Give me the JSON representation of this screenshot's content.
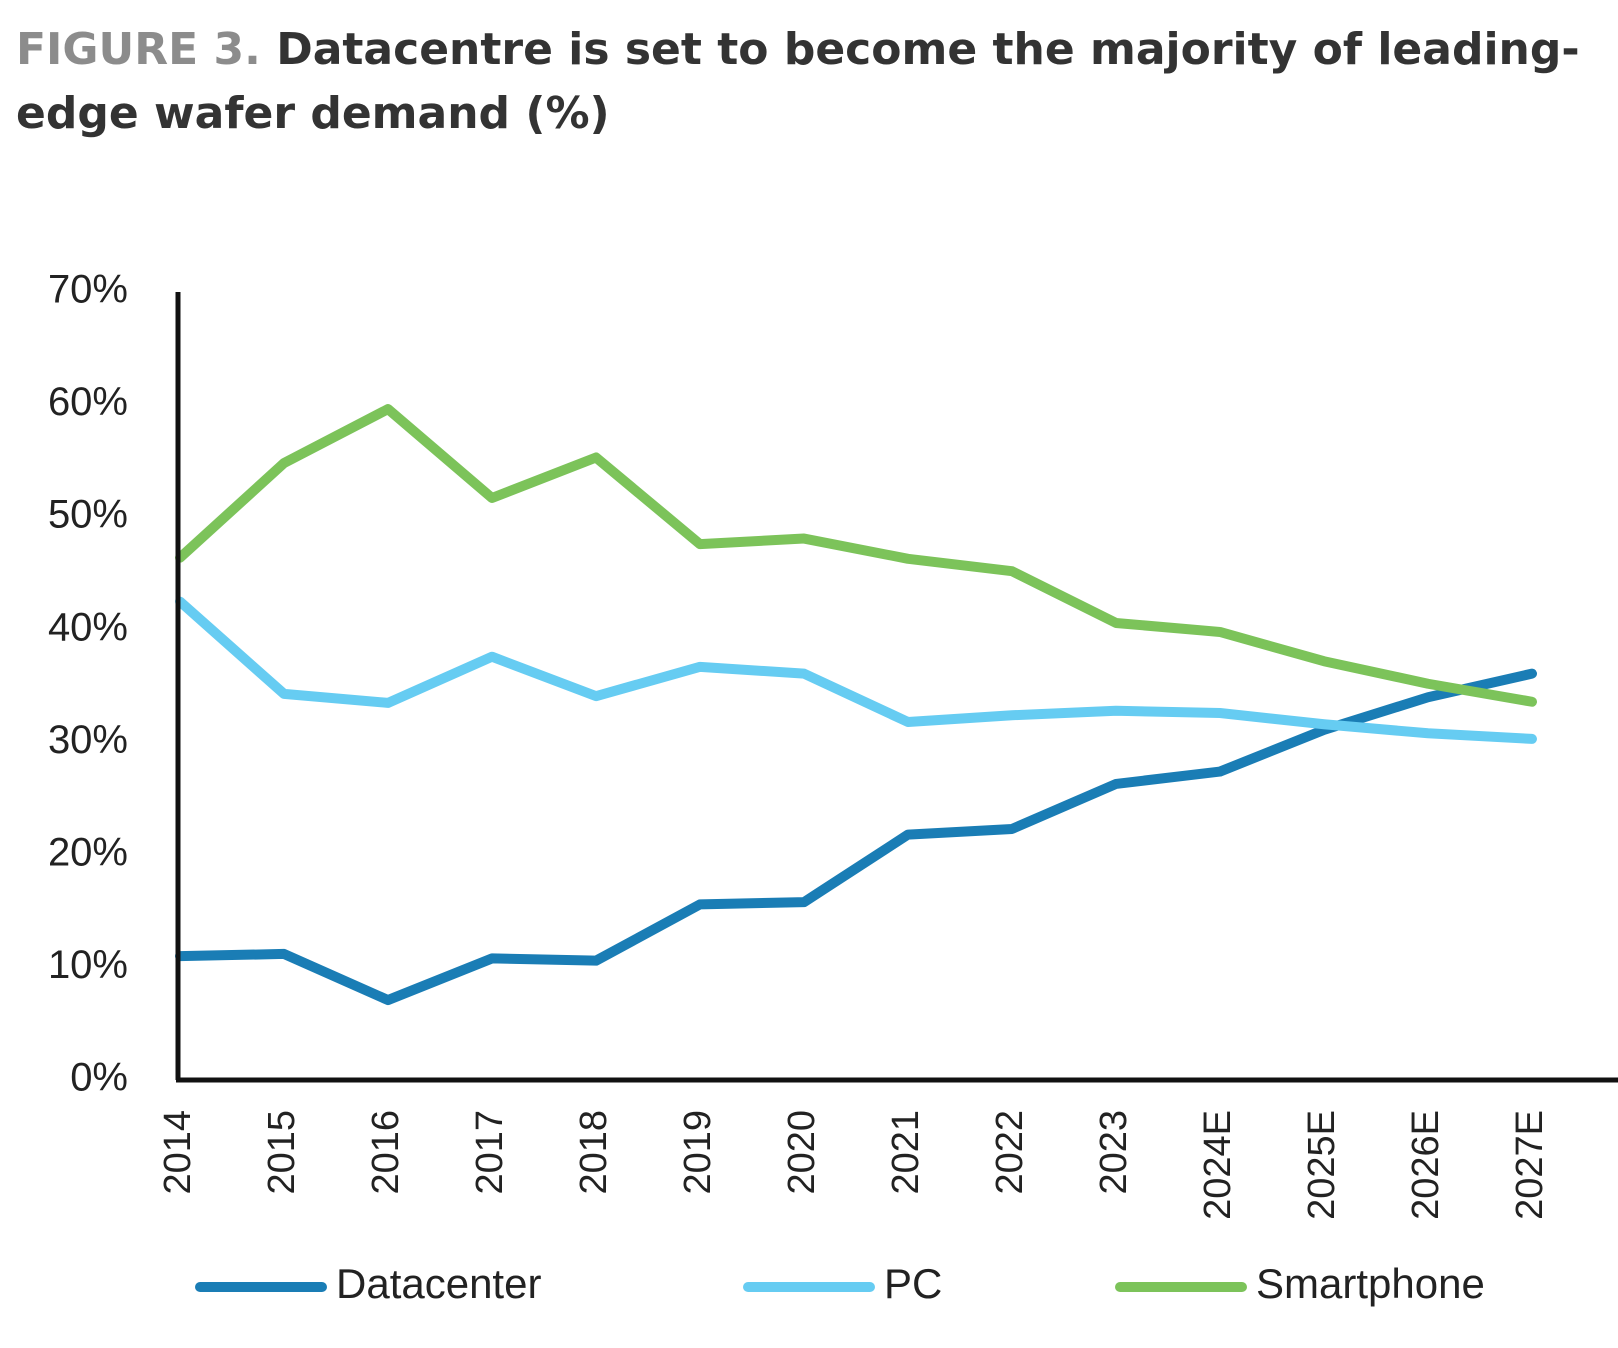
{
  "figure": {
    "prefix": "FIGURE 3.",
    "title": "Datacentre is set to become the majority of leading-edge wafer demand (%)"
  },
  "colors": {
    "Datacenter": "#1a7db5",
    "PC": "#66ccf2",
    "Smartphone": "#7cc35a",
    "axis": "#111111"
  },
  "chart_data": {
    "type": "line",
    "title": "Datacentre is set to become the majority of leading-edge wafer demand (%)",
    "xlabel": "",
    "ylabel": "",
    "ylim": [
      0,
      70
    ],
    "yticks": [
      0,
      10,
      20,
      30,
      40,
      50,
      60,
      70
    ],
    "ytick_labels": [
      "0%",
      "10%",
      "20%",
      "30%",
      "40%",
      "50%",
      "60%",
      "70%"
    ],
    "categories": [
      "2014",
      "2015",
      "2016",
      "2017",
      "2018",
      "2019",
      "2020",
      "2021",
      "2022",
      "2023",
      "2024E",
      "2025E",
      "2026E",
      "2027E"
    ],
    "series": [
      {
        "name": "Datacenter",
        "values": [
          11.0,
          11.2,
          7.1,
          10.8,
          10.6,
          15.6,
          15.8,
          21.8,
          22.3,
          26.3,
          27.4,
          31.1,
          34.0,
          36.1
        ]
      },
      {
        "name": "PC",
        "values": [
          42.5,
          34.3,
          33.5,
          37.6,
          34.1,
          36.7,
          36.1,
          31.8,
          32.4,
          32.8,
          32.6,
          31.6,
          30.8,
          30.3
        ]
      },
      {
        "name": "Smartphone",
        "values": [
          46.4,
          54.8,
          59.6,
          51.7,
          55.3,
          47.6,
          48.1,
          46.3,
          45.2,
          40.6,
          39.8,
          37.2,
          35.2,
          33.6
        ]
      }
    ],
    "grid": false,
    "legend": "bottom"
  }
}
